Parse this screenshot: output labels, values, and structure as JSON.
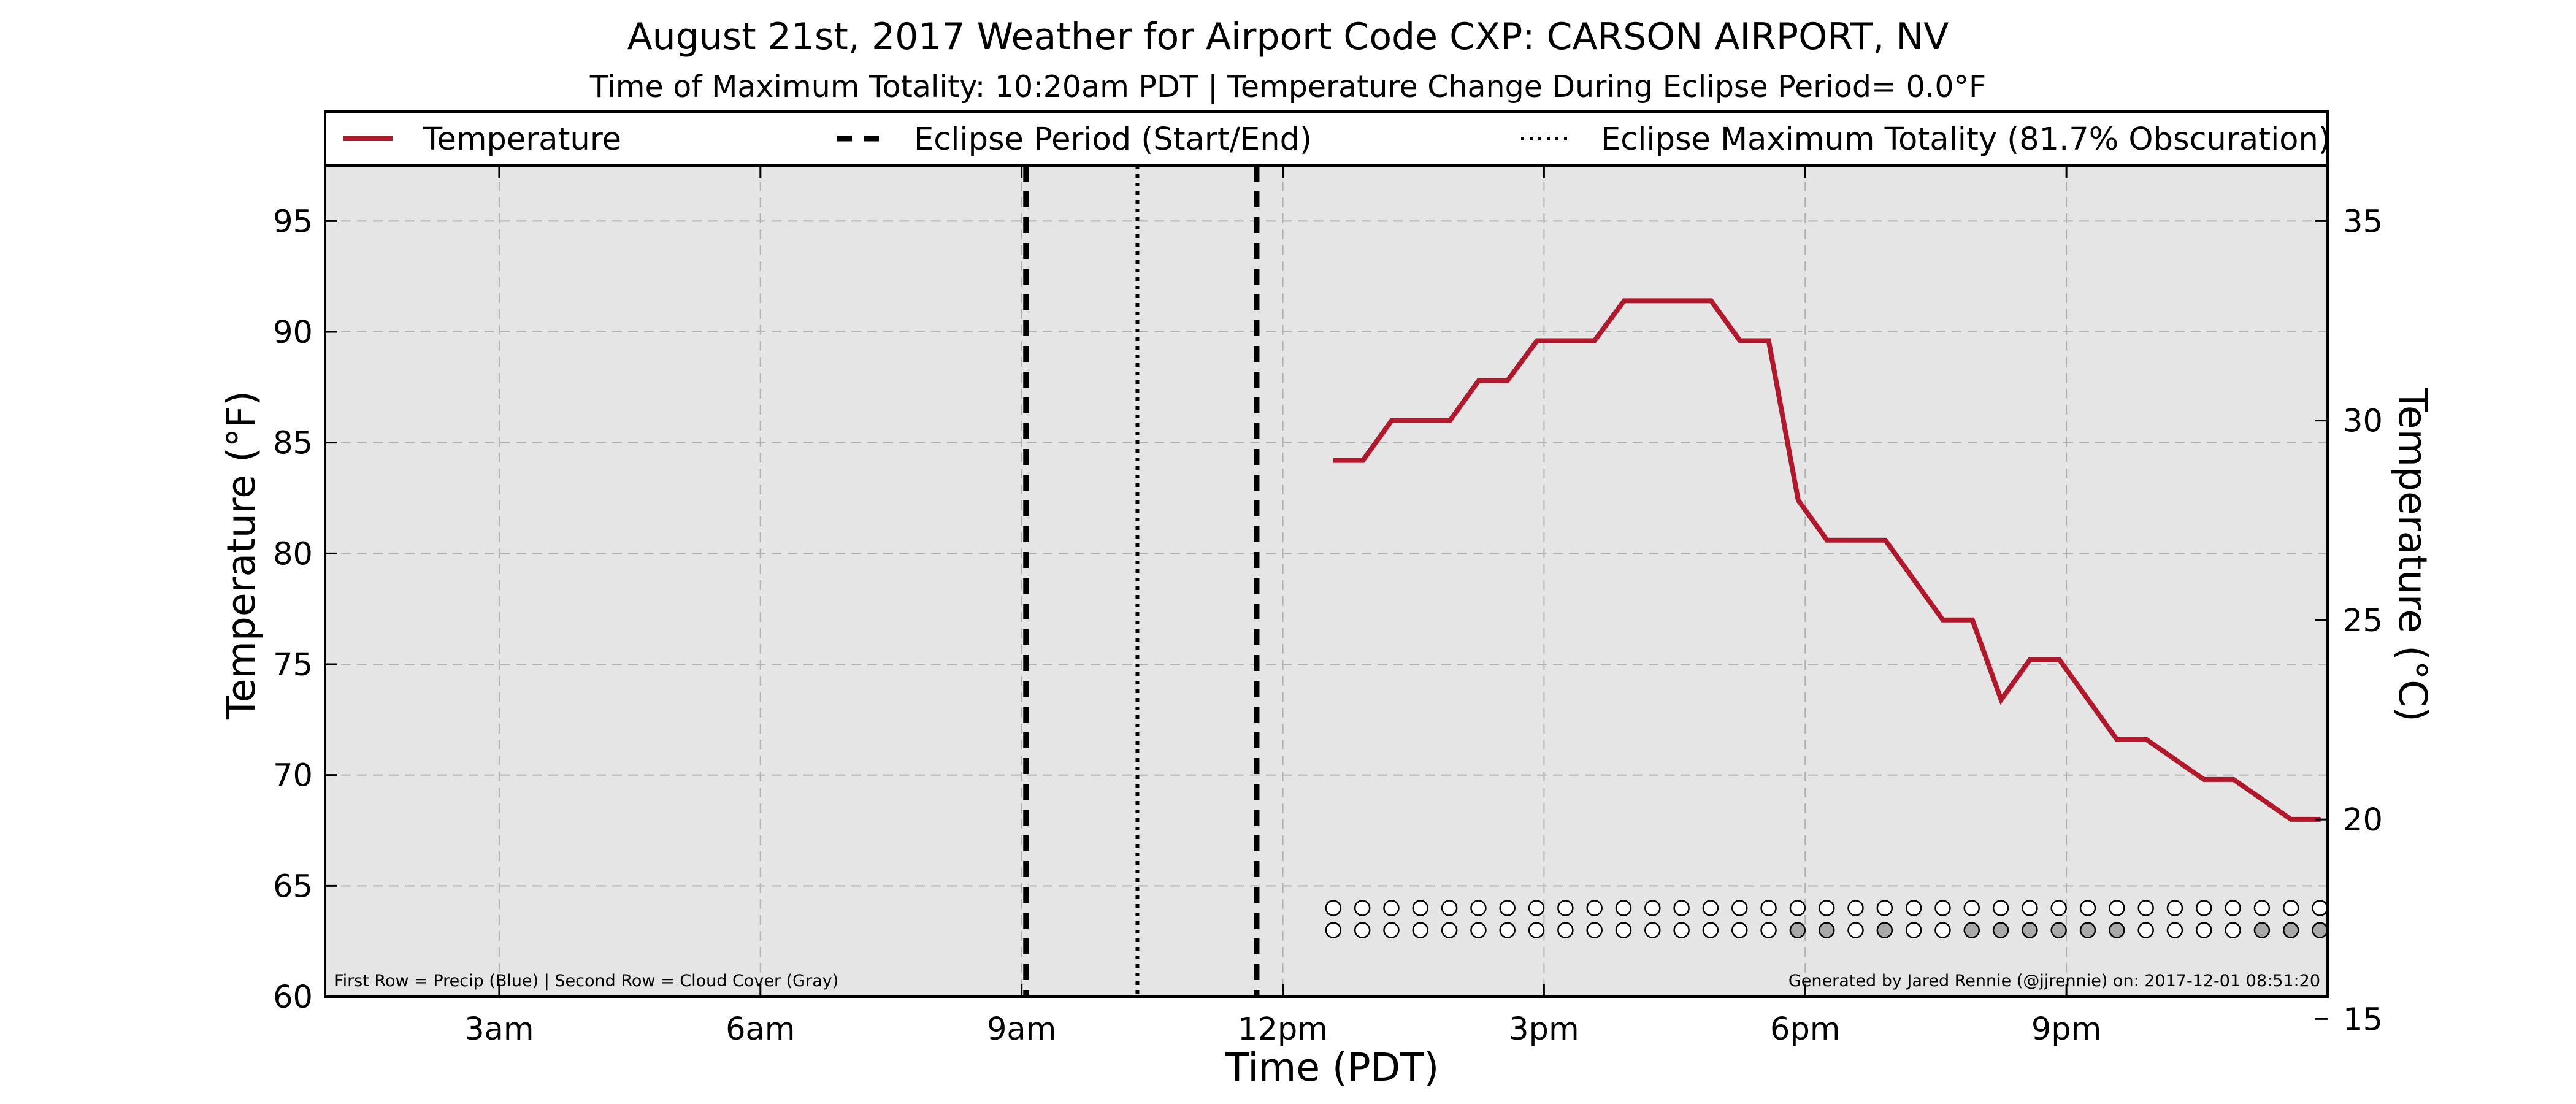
{
  "chart_data": {
    "type": "line",
    "title": "August 21st, 2017 Weather for Airport Code CXP: CARSON AIRPORT, NV",
    "subtitle": "Time of Maximum Totality: 10:20am PDT | Temperature Change During Eclipse Period= 0.0$^\\circ$F",
    "subtitle_display": "Time of Maximum Totality: 10:20am PDT | Temperature Change During Eclipse Period= 0.0°F",
    "xlabel": "Time (PDT)",
    "ylabel": "Temperature ($^\\circ$F)",
    "ylabel_display": "Temperature (°F)",
    "ylabel_right": "Temperature ($^\\circ$C)",
    "ylabel_right_display": "Temperature (°C)",
    "xlim": [
      1.0,
      24.0
    ],
    "ylim": [
      60,
      97.5
    ],
    "ylim_right": [
      15.56,
      36.39
    ],
    "x_ticks": [
      3,
      6,
      9,
      12,
      15,
      18,
      21
    ],
    "x_tick_labels": [
      "3am",
      "6am",
      "9am",
      "12pm",
      "3pm",
      "6pm",
      "9pm"
    ],
    "y_ticks": [
      60,
      65,
      70,
      75,
      80,
      85,
      90,
      95
    ],
    "y_tick_labels": [
      "60",
      "65",
      "70",
      "75",
      "80",
      "85",
      "90",
      "95"
    ],
    "y_ticks_right": [
      15,
      20,
      25,
      30,
      35
    ],
    "y_tick_labels_right": [
      "15",
      "20",
      "25",
      "30",
      "35"
    ],
    "grid": true,
    "legend_position": "top",
    "legend": [
      {
        "label": "Temperature",
        "style": "solid",
        "color": "#b2182b"
      },
      {
        "label": "Eclipse Period (Start/End)",
        "style": "dashed",
        "color": "#000000"
      },
      {
        "label": "Eclipse Maximum Totality (81.7% Obscuration)",
        "style": "dotted",
        "color": "#000000"
      }
    ],
    "series": [
      {
        "name": "Temperature",
        "color": "#b2182b",
        "x": [
          12.58,
          12.92,
          13.25,
          13.92,
          14.25,
          14.58,
          14.92,
          15.58,
          15.92,
          16.92,
          17.25,
          17.58,
          17.92,
          18.25,
          18.92,
          19.58,
          19.92,
          20.25,
          20.58,
          20.92,
          21.58,
          21.92,
          22.58,
          22.92,
          23.58,
          23.92
        ],
        "y": [
          84.2,
          84.2,
          86.0,
          86.0,
          87.8,
          87.8,
          89.6,
          89.6,
          91.4,
          91.4,
          89.6,
          89.6,
          82.4,
          80.6,
          80.6,
          77.0,
          77.0,
          73.4,
          75.2,
          75.2,
          71.6,
          71.6,
          69.8,
          69.8,
          68.0,
          68.0
        ]
      }
    ],
    "eclipse_start": 9.05,
    "eclipse_end": 11.7,
    "eclipse_max": 10.33,
    "marker_rows": {
      "x_start": 12.58,
      "step": 0.3333,
      "count": 35,
      "precip_y": 64.0,
      "cloud_y": 63.0,
      "precip_colors": [
        "#ffffff",
        "#ffffff",
        "#ffffff",
        "#ffffff",
        "#ffffff",
        "#ffffff",
        "#ffffff",
        "#ffffff",
        "#ffffff",
        "#ffffff",
        "#ffffff",
        "#ffffff",
        "#ffffff",
        "#ffffff",
        "#ffffff",
        "#ffffff",
        "#ffffff",
        "#ffffff",
        "#ffffff",
        "#ffffff",
        "#ffffff",
        "#ffffff",
        "#ffffff",
        "#ffffff",
        "#ffffff",
        "#ffffff",
        "#ffffff",
        "#ffffff",
        "#ffffff",
        "#ffffff",
        "#ffffff",
        "#ffffff",
        "#ffffff",
        "#ffffff",
        "#ffffff"
      ],
      "cloud_colors": [
        "#ffffff",
        "#ffffff",
        "#ffffff",
        "#ffffff",
        "#ffffff",
        "#ffffff",
        "#ffffff",
        "#ffffff",
        "#ffffff",
        "#ffffff",
        "#ffffff",
        "#ffffff",
        "#ffffff",
        "#ffffff",
        "#ffffff",
        "#ffffff",
        "#a9a9a9",
        "#a9a9a9",
        "#ffffff",
        "#a9a9a9",
        "#ffffff",
        "#ffffff",
        "#a9a9a9",
        "#a9a9a9",
        "#a9a9a9",
        "#a9a9a9",
        "#a9a9a9",
        "#a9a9a9",
        "#ffffff",
        "#ffffff",
        "#ffffff",
        "#ffffff",
        "#a9a9a9",
        "#a9a9a9",
        "#a9a9a9"
      ]
    },
    "footnote_left": "First Row = Precip (Blue) | Second Row = Cloud Cover (Gray)",
    "footnote_right": "Generated by Jared Rennie (@jjrennie) on: 2017-12-01 08:51:20",
    "colors": {
      "plot_background": "#e5e5e5",
      "temperature": "#b2182b",
      "grid": "#b0b0b0"
    }
  }
}
